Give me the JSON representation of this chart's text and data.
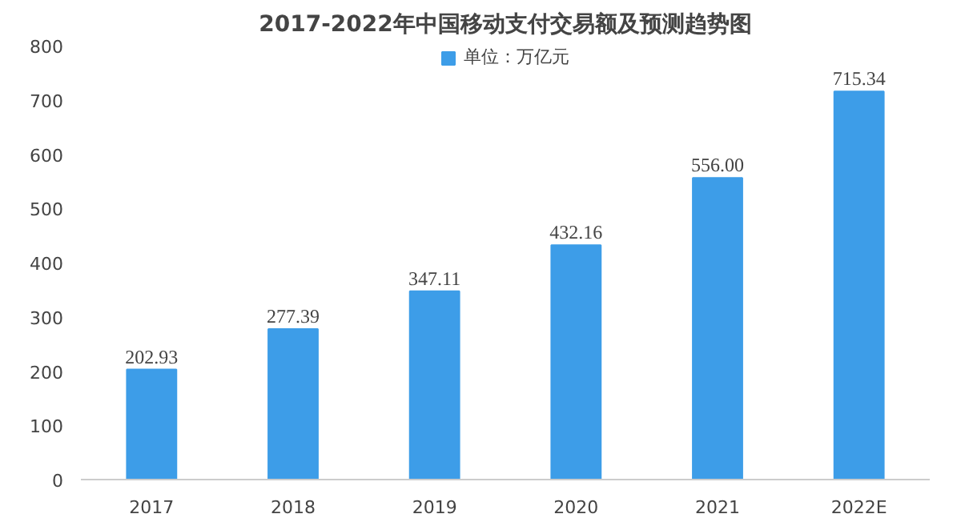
{
  "chart_data": {
    "type": "bar",
    "title": "2017-2022年中国移动支付交易额及预测趋势图",
    "categories": [
      "2017",
      "2018",
      "2019",
      "2020",
      "2021",
      "2022E"
    ],
    "series": [
      {
        "name": "单位：万亿元",
        "color": "#3d9de8",
        "values": [
          202.93,
          277.39,
          347.11,
          432.16,
          556.0,
          715.34
        ]
      }
    ],
    "value_labels": [
      "202.93",
      "277.39",
      "347.11",
      "432.16",
      "556.00",
      "715.34"
    ],
    "ylim": [
      0,
      800
    ],
    "yticks": [
      0,
      100,
      200,
      300,
      400,
      500,
      600,
      700,
      800
    ],
    "grid": false,
    "legend": "top"
  }
}
